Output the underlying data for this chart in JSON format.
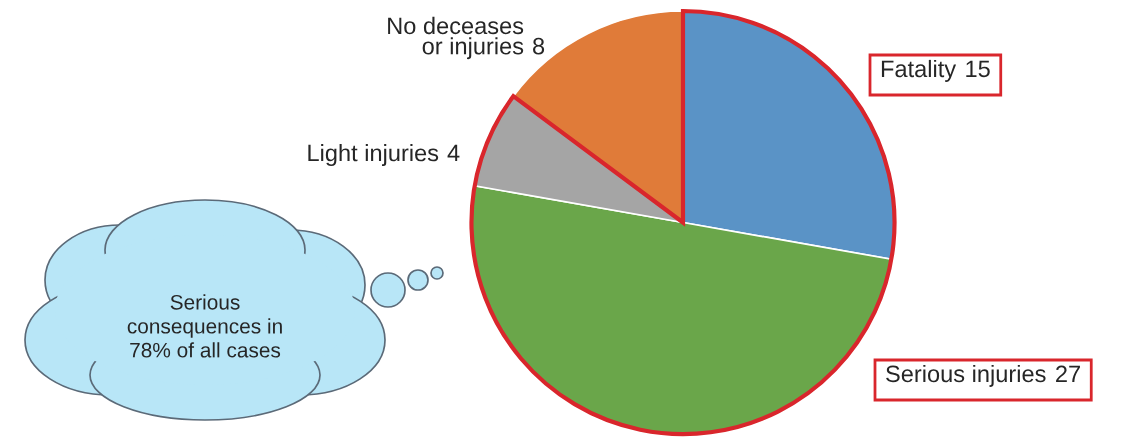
{
  "chart_data": {
    "type": "pie",
    "categories": [
      "Fatality",
      "Serious injuries",
      "Light injuries",
      "No deceases\nor injuries"
    ],
    "values": [
      15,
      27,
      4,
      8
    ],
    "colors": [
      "#5a93c6",
      "#6aa64a",
      "#a5a5a5",
      "#e07b39"
    ],
    "data_labels": true,
    "annotations": [
      "Serious\nconsequences in\n78% of all cases"
    ]
  }
}
